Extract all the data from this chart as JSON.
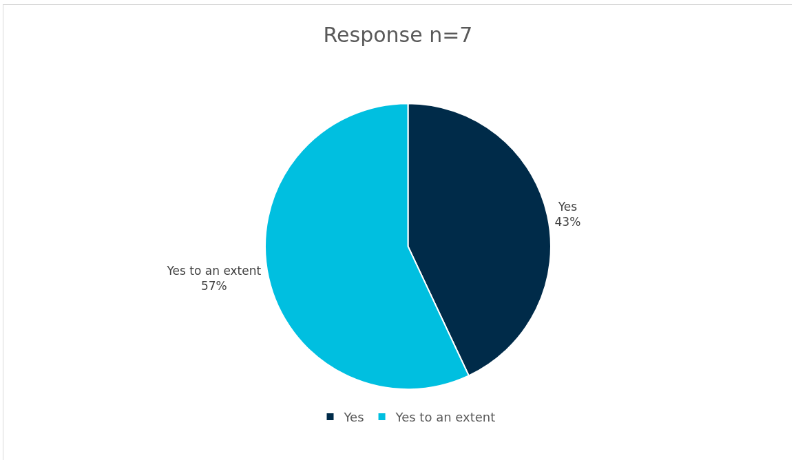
{
  "chart_data": {
    "type": "pie",
    "title": "Response n=7",
    "categories": [
      "Yes",
      "Yes to an extent"
    ],
    "values": [
      43,
      57
    ],
    "value_labels": [
      "43%",
      "57%"
    ],
    "colors": [
      "#002b49",
      "#00bfe0"
    ],
    "legend": "bottom"
  }
}
